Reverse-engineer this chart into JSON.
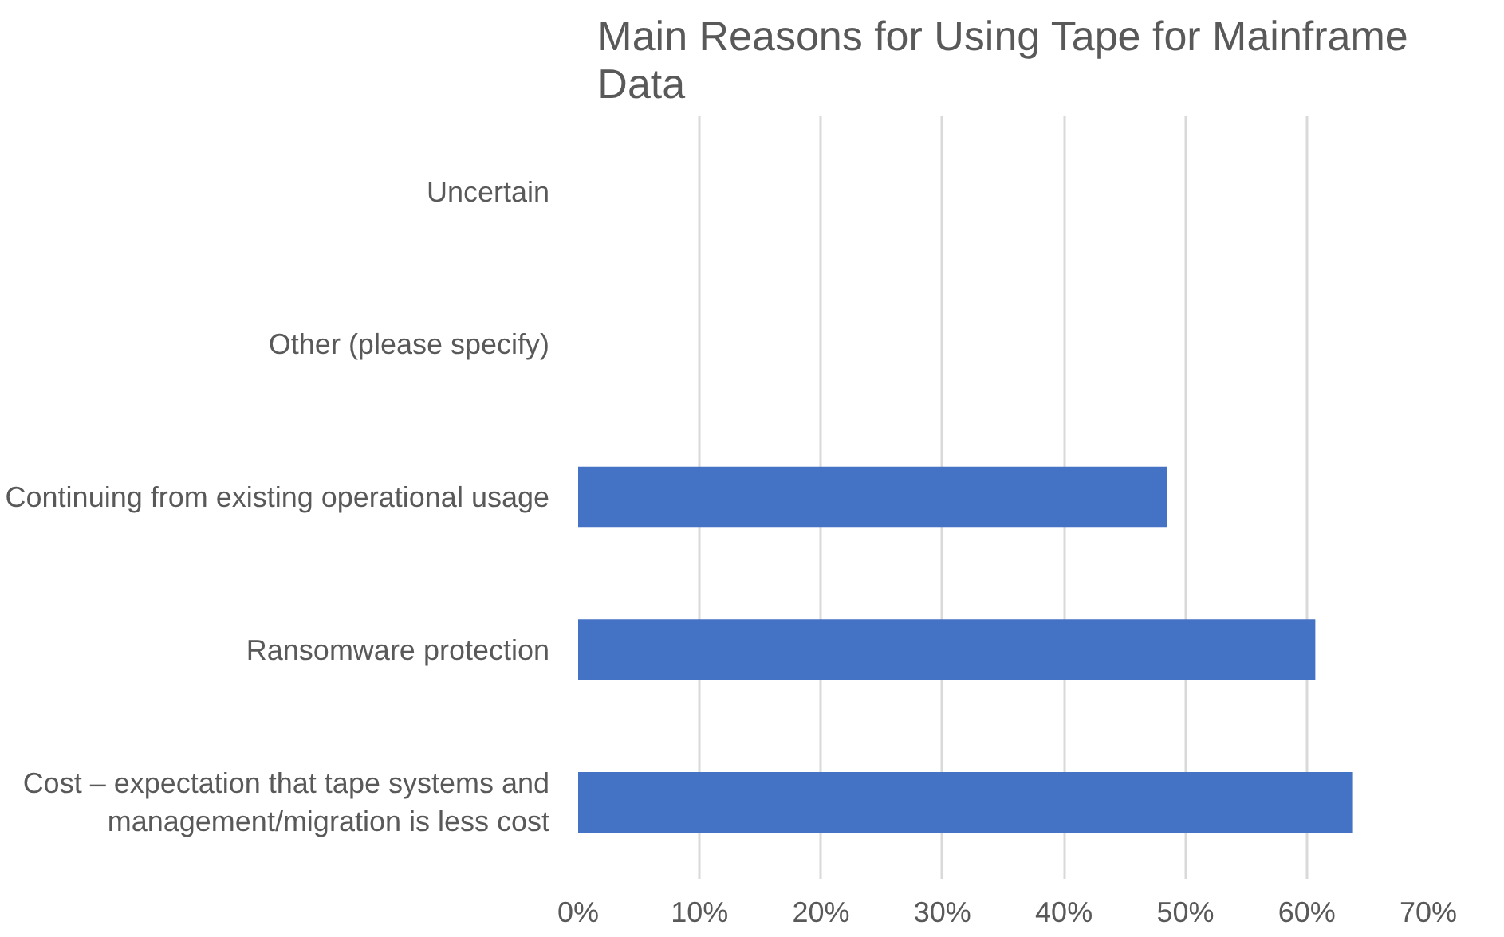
{
  "chart_data": {
    "type": "bar",
    "orientation": "horizontal",
    "title": "Main Reasons for Using Tape for Mainframe Data",
    "categories": [
      "Uncertain",
      "Other (please specify)",
      "Continuing from existing operational usage",
      "Ransomware protection",
      "Cost – expectation that tape systems and management/migration is less cost"
    ],
    "values": [
      0,
      0,
      48.5,
      60.7,
      63.8
    ],
    "color": "#4472c4",
    "xlim": [
      0,
      70
    ],
    "xticks": [
      {
        "value": 0,
        "label": "0%"
      },
      {
        "value": 10,
        "label": "10%"
      },
      {
        "value": 20,
        "label": "20%"
      },
      {
        "value": 30,
        "label": "30%"
      },
      {
        "value": 40,
        "label": "40%"
      },
      {
        "value": 50,
        "label": "50%"
      },
      {
        "value": 60,
        "label": "60%"
      },
      {
        "value": 70,
        "label": "70%"
      }
    ],
    "grid": "x"
  }
}
